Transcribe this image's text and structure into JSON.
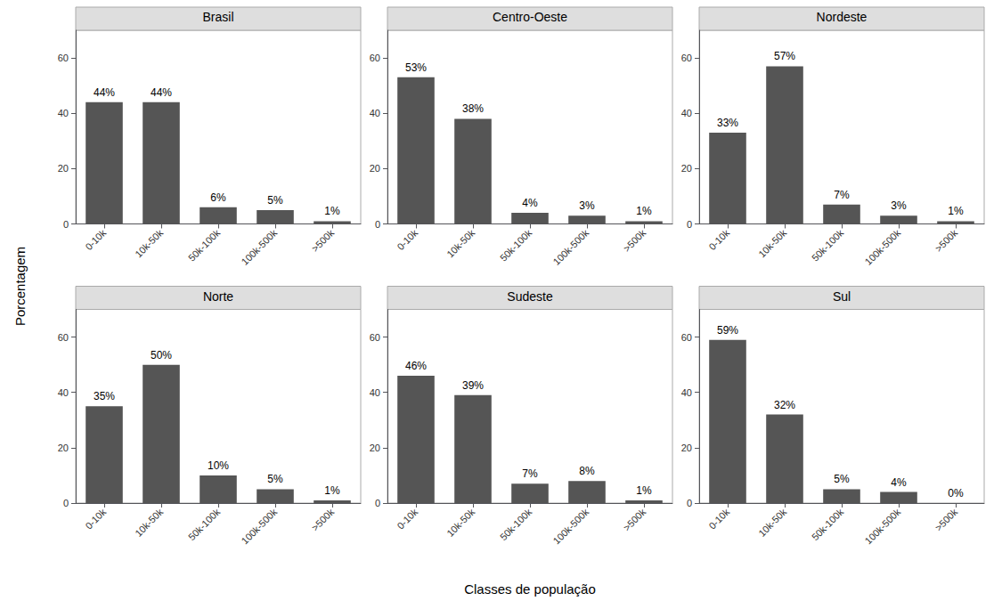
{
  "chart_data": [
    {
      "type": "bar",
      "title": "Brasil",
      "categories": [
        "0-10k",
        "10k-50k",
        "50k-100k",
        "100k-500k",
        ">500k"
      ],
      "values": [
        44,
        44,
        6,
        5,
        1
      ],
      "value_labels": [
        "44%",
        "44%",
        "6%",
        "5%",
        "1%"
      ],
      "color": "#555555",
      "ylim": [
        0,
        70
      ],
      "yticks": [
        0,
        20,
        40,
        60
      ],
      "grid": false
    },
    {
      "type": "bar",
      "title": "Centro-Oeste",
      "categories": [
        "0-10k",
        "10k-50k",
        "50k-100k",
        "100k-500k",
        ">500k"
      ],
      "values": [
        53,
        38,
        4,
        3,
        1
      ],
      "value_labels": [
        "53%",
        "38%",
        "4%",
        "3%",
        "1%"
      ],
      "color": "#555555",
      "ylim": [
        0,
        70
      ],
      "yticks": [
        0,
        20,
        40,
        60
      ],
      "grid": false
    },
    {
      "type": "bar",
      "title": "Nordeste",
      "categories": [
        "0-10k",
        "10k-50k",
        "50k-100k",
        "100k-500k",
        ">500k"
      ],
      "values": [
        33,
        57,
        7,
        3,
        1
      ],
      "value_labels": [
        "33%",
        "57%",
        "7%",
        "3%",
        "1%"
      ],
      "color": "#555555",
      "ylim": [
        0,
        70
      ],
      "yticks": [
        0,
        20,
        40,
        60
      ],
      "grid": false
    },
    {
      "type": "bar",
      "title": "Norte",
      "categories": [
        "0-10k",
        "10k-50k",
        "50k-100k",
        "100k-500k",
        ">500k"
      ],
      "values": [
        35,
        50,
        10,
        5,
        1
      ],
      "value_labels": [
        "35%",
        "50%",
        "10%",
        "5%",
        "1%"
      ],
      "color": "#555555",
      "ylim": [
        0,
        70
      ],
      "yticks": [
        0,
        20,
        40,
        60
      ],
      "grid": false
    },
    {
      "type": "bar",
      "title": "Sudeste",
      "categories": [
        "0-10k",
        "10k-50k",
        "50k-100k",
        "100k-500k",
        ">500k"
      ],
      "values": [
        46,
        39,
        7,
        8,
        1
      ],
      "value_labels": [
        "46%",
        "39%",
        "7%",
        "8%",
        "1%"
      ],
      "color": "#555555",
      "ylim": [
        0,
        70
      ],
      "yticks": [
        0,
        20,
        40,
        60
      ],
      "grid": false
    },
    {
      "type": "bar",
      "title": "Sul",
      "categories": [
        "0-10k",
        "10k-50k",
        "50k-100k",
        "100k-500k",
        ">500k"
      ],
      "values": [
        59,
        32,
        5,
        4,
        0
      ],
      "value_labels": [
        "59%",
        "32%",
        "5%",
        "4%",
        "0%"
      ],
      "color": "#555555",
      "ylim": [
        0,
        70
      ],
      "yticks": [
        0,
        20,
        40,
        60
      ],
      "grid": false
    }
  ],
  "xlabel": "Classes de população",
  "ylabel": "Porcentagem"
}
